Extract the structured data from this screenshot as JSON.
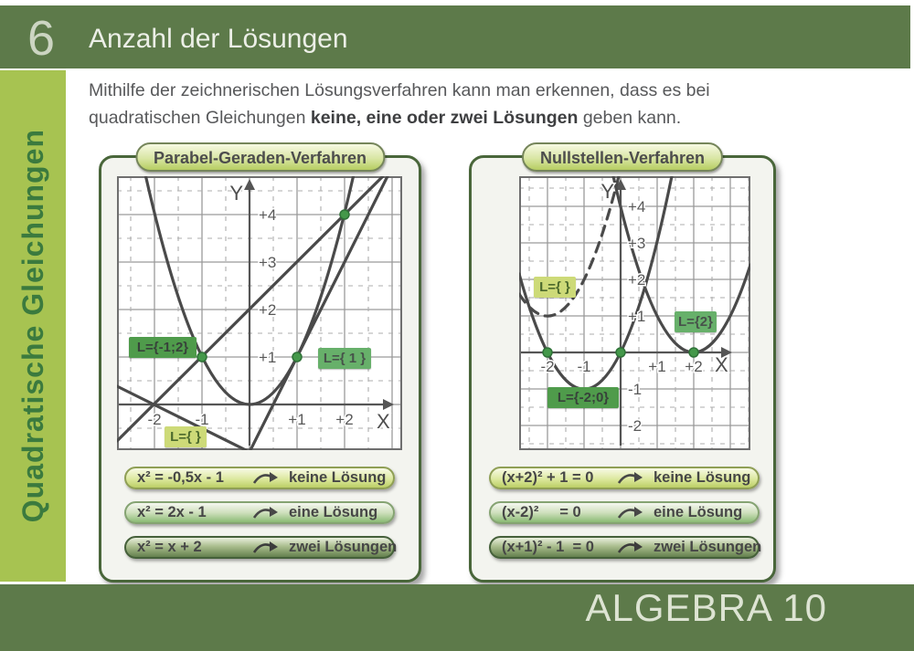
{
  "header": {
    "chapter_number": "6",
    "title": "Anzahl der Lösungen"
  },
  "sidebar": {
    "label": "Quadratische Gleichungen"
  },
  "intro": {
    "line1": "Mithilfe der zeichnerischen Lösungsverfahren kann man erkennen, dass es bei",
    "line2_before": "quadratischen Gleichungen ",
    "line2_bold": "keine, eine oder zwei Lösungen",
    "line2_after": " geben kann."
  },
  "footer": {
    "label": "ALGEBRA 10"
  },
  "colors": {
    "header_green": "#5d7a4a",
    "sidebar_green": "#a7c351",
    "panel_border_green": "#49663a",
    "label_dark_green": "#4f9b4b",
    "label_mid_green": "#67b06a",
    "label_light_green": "#cdda78"
  },
  "panels": {
    "left": {
      "tab": "Parabel-Geraden-Verfahren",
      "graph": {
        "x_axis_label": "X",
        "y_axis_label": "Y",
        "y_ticks": [
          "+4",
          "+3",
          "+2",
          "+1"
        ],
        "x_ticks": [
          "-2",
          "-1",
          "+1",
          "+2"
        ],
        "solution_labels": [
          "L={-1;2}",
          "L={ 1 }",
          "L={ }"
        ]
      },
      "rows": [
        {
          "equation": "x² = -0,5x - 1",
          "result": "keine Lösung"
        },
        {
          "equation": "x² = 2x - 1",
          "result": "eine Lösung"
        },
        {
          "equation": "x² = x + 2",
          "result": "zwei Lösungen"
        }
      ]
    },
    "right": {
      "tab": "Nullstellen-Verfahren",
      "graph": {
        "x_axis_label": "X",
        "y_axis_label": "Y",
        "y_ticks": [
          "+4",
          "+3",
          "+2",
          "+1",
          "-1",
          "-2"
        ],
        "x_ticks": [
          "-2",
          "-1",
          "+1",
          "+2"
        ],
        "solution_labels": [
          "L={ }",
          "L={2}",
          "L={-2;0}"
        ]
      },
      "rows": [
        {
          "equation": "(x+2)² + 1 = 0",
          "result": "keine Lösung"
        },
        {
          "equation": "(x-2)²     = 0",
          "result": "eine Lösung"
        },
        {
          "equation": "(x+1)² - 1  = 0",
          "result": "zwei Lösungen"
        }
      ]
    }
  }
}
